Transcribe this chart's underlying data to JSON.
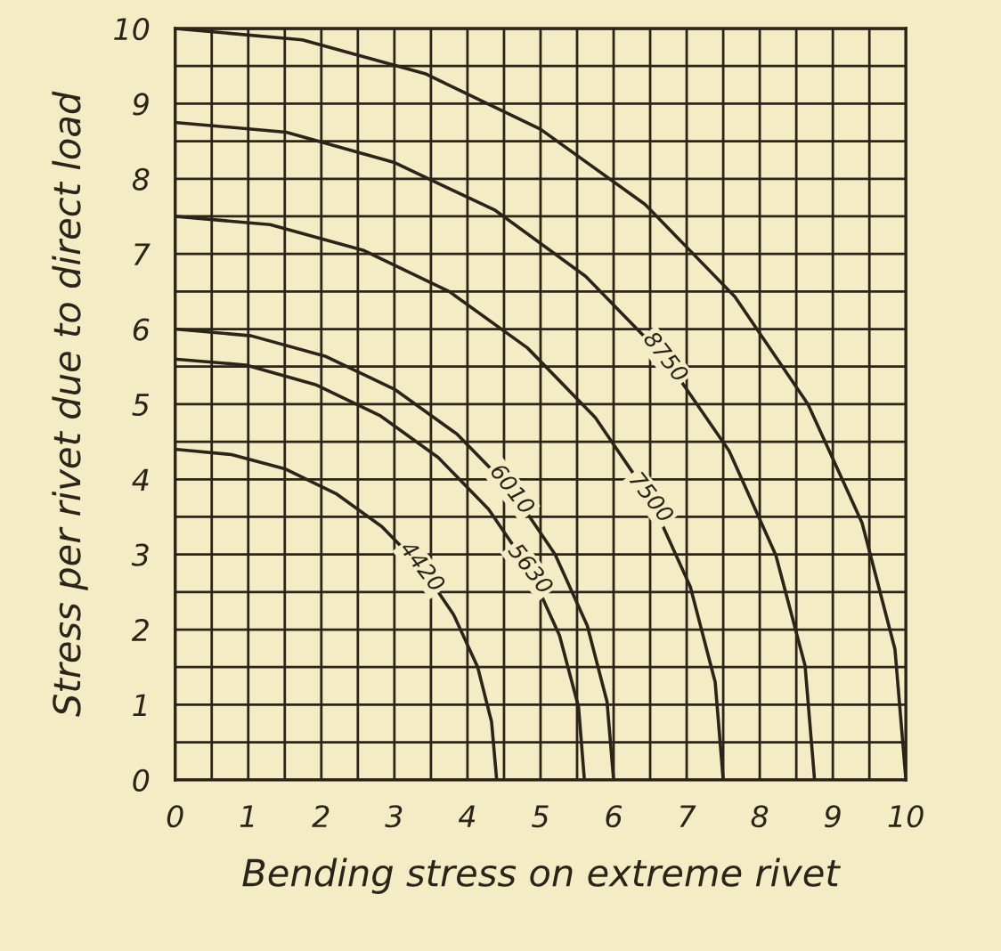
{
  "chart_data": {
    "type": "line",
    "xlabel": "Bending stress on extreme rivet",
    "ylabel": "Stress per rivet due to direct load",
    "xlim": [
      0,
      10
    ],
    "ylim": [
      0,
      10
    ],
    "xticks": [
      0,
      {
        "value": 0.5,
        "label": null
      },
      1,
      {
        "value": 1.5,
        "label": null
      },
      2,
      {
        "value": 2.5,
        "label": null
      },
      3,
      {
        "value": 3.5,
        "label": null
      },
      4,
      {
        "value": 4.5,
        "label": null
      },
      5,
      {
        "value": 5.5,
        "label": null
      },
      6,
      {
        "value": 6.5,
        "label": null
      },
      7,
      {
        "value": 7.5,
        "label": null
      },
      8,
      {
        "value": 8.5,
        "label": null
      },
      9,
      {
        "value": 9.5,
        "label": null
      },
      10
    ],
    "yticks": [
      0,
      {
        "value": 0.5,
        "label": null
      },
      1,
      {
        "value": 1.5,
        "label": null
      },
      2,
      {
        "value": 2.5,
        "label": null
      },
      3,
      {
        "value": 3.5,
        "label": null
      },
      4,
      {
        "value": 4.5,
        "label": null
      },
      5,
      {
        "value": 5.5,
        "label": null
      },
      6,
      {
        "value": 6.5,
        "label": null
      },
      7,
      {
        "value": 7.5,
        "label": null
      },
      8,
      {
        "value": 8.5,
        "label": null
      },
      9,
      {
        "value": 9.5,
        "label": null
      },
      10
    ],
    "grid": true,
    "legend": false,
    "marker": "none",
    "line_style": "solid",
    "series": [
      {
        "color": "#2b2418",
        "x": [
          10,
          9.85,
          9.4,
          8.66,
          7.66,
          6.43,
          5,
          3.42,
          1.74,
          0
        ],
        "values": [
          0,
          1.74,
          3.42,
          5,
          6.43,
          7.66,
          8.66,
          9.4,
          9.85,
          10
        ]
      },
      {
        "name": "8750",
        "color": "#2b2418",
        "x": [
          8.75,
          8.62,
          8.22,
          7.58,
          6.7,
          5.62,
          4.38,
          2.99,
          1.52,
          0
        ],
        "values": [
          0,
          1.52,
          2.99,
          4.38,
          5.62,
          6.7,
          7.58,
          8.22,
          8.62,
          8.75
        ]
      },
      {
        "name": "7500",
        "color": "#2b2418",
        "x": [
          7.5,
          7.39,
          7.05,
          6.5,
          5.75,
          4.82,
          3.75,
          2.57,
          1.3,
          0
        ],
        "values": [
          0,
          1.3,
          2.57,
          3.75,
          4.82,
          5.75,
          6.5,
          7.05,
          7.39,
          7.5
        ]
      },
      {
        "name": "6010",
        "color": "#2b2418",
        "x": [
          6,
          5.91,
          5.64,
          5.2,
          4.6,
          3.86,
          3,
          2.05,
          1.04,
          0
        ],
        "values": [
          0,
          1.04,
          2.05,
          3,
          3.86,
          4.6,
          5.2,
          5.64,
          5.91,
          6
        ]
      },
      {
        "name": "5630",
        "color": "#2b2418",
        "x": [
          5.6,
          5.52,
          5.26,
          4.85,
          4.29,
          3.6,
          2.8,
          1.92,
          0.97,
          0
        ],
        "values": [
          0,
          0.97,
          1.92,
          2.8,
          3.6,
          4.29,
          4.85,
          5.26,
          5.52,
          5.6
        ]
      },
      {
        "name": "4420",
        "color": "#2b2418",
        "x": [
          4.4,
          4.33,
          4.14,
          3.81,
          3.37,
          2.83,
          2.2,
          1.5,
          0.77,
          0
        ],
        "values": [
          0,
          0.77,
          1.5,
          2.2,
          2.83,
          3.37,
          3.81,
          4.14,
          4.33,
          4.4
        ]
      }
    ]
  }
}
